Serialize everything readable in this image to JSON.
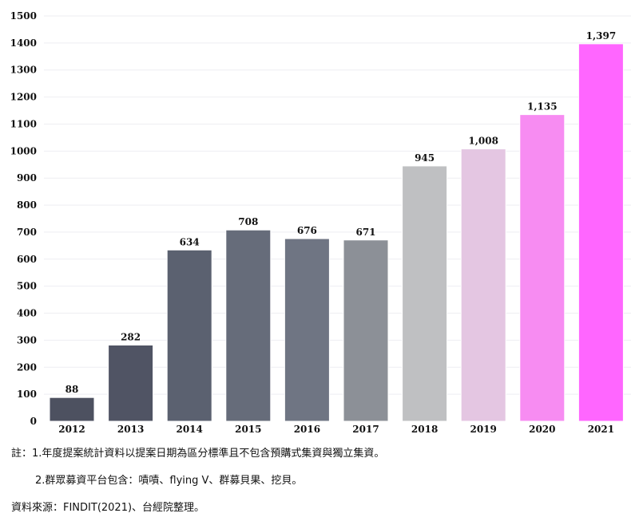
{
  "chart_data": {
    "type": "bar",
    "title": "",
    "xlabel": "",
    "ylabel": "",
    "categories": [
      "2012",
      "2013",
      "2014",
      "2015",
      "2016",
      "2017",
      "2018",
      "2019",
      "2020",
      "2021"
    ],
    "values": [
      88,
      282,
      634,
      708,
      676,
      671,
      945,
      1008,
      1135,
      1397
    ],
    "data_labels": [
      "88",
      "282",
      "634",
      "708",
      "676",
      "671",
      "945",
      "1,008",
      "1,135",
      "1,397"
    ],
    "bar_colors": [
      "#4d5160",
      "#505464",
      "#5b6170",
      "#666c7a",
      "#6f7583",
      "#8c9097",
      "#bfc0c2",
      "#e4c6e2",
      "#f78cf2",
      "#ff66ff"
    ],
    "ylim": [
      0,
      1500
    ],
    "yticks": [
      "0",
      "100",
      "200",
      "300",
      "400",
      "500",
      "600",
      "700",
      "800",
      "900",
      "1000",
      "1100",
      "1200",
      "1300",
      "1400",
      "1500"
    ],
    "grid": true,
    "legend": "none"
  },
  "notes": {
    "note1": "註：1.年度提案統計資料以提案日期為區分標準且不包含預購式集資與獨立集資。",
    "note2": "2.群眾募資平台包含：嘖嘖、flying V、群募貝果、挖貝。",
    "source": "資料來源：FINDIT(2021)、台經院整理。"
  }
}
